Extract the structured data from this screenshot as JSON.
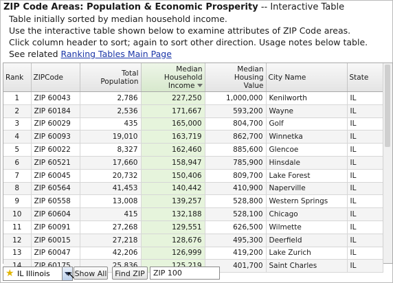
{
  "header": {
    "title_bold": "ZIP Code Areas: Population & Economic Prosperity",
    "title_rest": " -- Interactive Table",
    "line1": "Table initially sorted by median household income.",
    "line2": "Use the interactive table shown below to examine attributes of ZIP Code areas.",
    "line3": "Click column header to sort; again to sort other direction. Usage notes below table.",
    "line4_prefix": "See related ",
    "line4_link": "Ranking Tables Main Page"
  },
  "table": {
    "columns": [
      {
        "key": "rank",
        "label": "Rank"
      },
      {
        "key": "zip",
        "label": "ZIPCode"
      },
      {
        "key": "pop",
        "label": "Total\nPopulation"
      },
      {
        "key": "income",
        "label": "Median\nHousehold\nIncome",
        "sorted": true
      },
      {
        "key": "housing",
        "label": "Median\nHousing\nValue"
      },
      {
        "key": "city",
        "label": "City Name"
      },
      {
        "key": "state",
        "label": "State"
      }
    ],
    "rows": [
      {
        "rank": "1",
        "zip": "ZIP 60043",
        "pop": "2,786",
        "income": "227,250",
        "housing": "1,000,000",
        "city": "Kenilworth",
        "state": "IL"
      },
      {
        "rank": "2",
        "zip": "ZIP 60184",
        "pop": "2,536",
        "income": "171,667",
        "housing": "593,200",
        "city": "Wayne",
        "state": "IL"
      },
      {
        "rank": "3",
        "zip": "ZIP 60029",
        "pop": "435",
        "income": "165,000",
        "housing": "804,700",
        "city": "Golf",
        "state": "IL"
      },
      {
        "rank": "4",
        "zip": "ZIP 60093",
        "pop": "19,010",
        "income": "163,719",
        "housing": "862,700",
        "city": "Winnetka",
        "state": "IL"
      },
      {
        "rank": "5",
        "zip": "ZIP 60022",
        "pop": "8,327",
        "income": "162,460",
        "housing": "885,600",
        "city": "Glencoe",
        "state": "IL"
      },
      {
        "rank": "6",
        "zip": "ZIP 60521",
        "pop": "17,660",
        "income": "158,947",
        "housing": "785,900",
        "city": "Hinsdale",
        "state": "IL"
      },
      {
        "rank": "7",
        "zip": "ZIP 60045",
        "pop": "20,732",
        "income": "150,406",
        "housing": "809,700",
        "city": "Lake Forest",
        "state": "IL"
      },
      {
        "rank": "8",
        "zip": "ZIP 60564",
        "pop": "41,453",
        "income": "140,442",
        "housing": "410,900",
        "city": "Naperville",
        "state": "IL"
      },
      {
        "rank": "9",
        "zip": "ZIP 60558",
        "pop": "13,008",
        "income": "139,257",
        "housing": "528,800",
        "city": "Western Springs",
        "state": "IL"
      },
      {
        "rank": "10",
        "zip": "ZIP 60604",
        "pop": "415",
        "income": "132,188",
        "housing": "528,100",
        "city": "Chicago",
        "state": "IL"
      },
      {
        "rank": "11",
        "zip": "ZIP 60091",
        "pop": "27,268",
        "income": "129,551",
        "housing": "626,500",
        "city": "Wilmette",
        "state": "IL"
      },
      {
        "rank": "12",
        "zip": "ZIP 60015",
        "pop": "27,218",
        "income": "128,676",
        "housing": "495,300",
        "city": "Deerfield",
        "state": "IL"
      },
      {
        "rank": "13",
        "zip": "ZIP 60047",
        "pop": "42,206",
        "income": "126,999",
        "housing": "419,200",
        "city": "Lake Zurich",
        "state": "IL"
      },
      {
        "rank": "14",
        "zip": "ZIP 60175",
        "pop": "25,836",
        "income": "125,219",
        "housing": "401,700",
        "city": "Saint Charles",
        "state": "IL"
      }
    ]
  },
  "toolbar": {
    "state_select": "IL Illinois",
    "show_all": "Show All",
    "find_zip": "Find ZIP",
    "zip_value": "ZIP 100"
  },
  "icons": {
    "state_star": "star-icon",
    "dropdown": "chevron-down-icon",
    "sort": "sort-desc-icon",
    "cursor": "mouse-pointer-icon"
  },
  "colors": {
    "sorted_column": "#e6f4dc",
    "link": "#1a35a8",
    "star": "#e0b400"
  }
}
